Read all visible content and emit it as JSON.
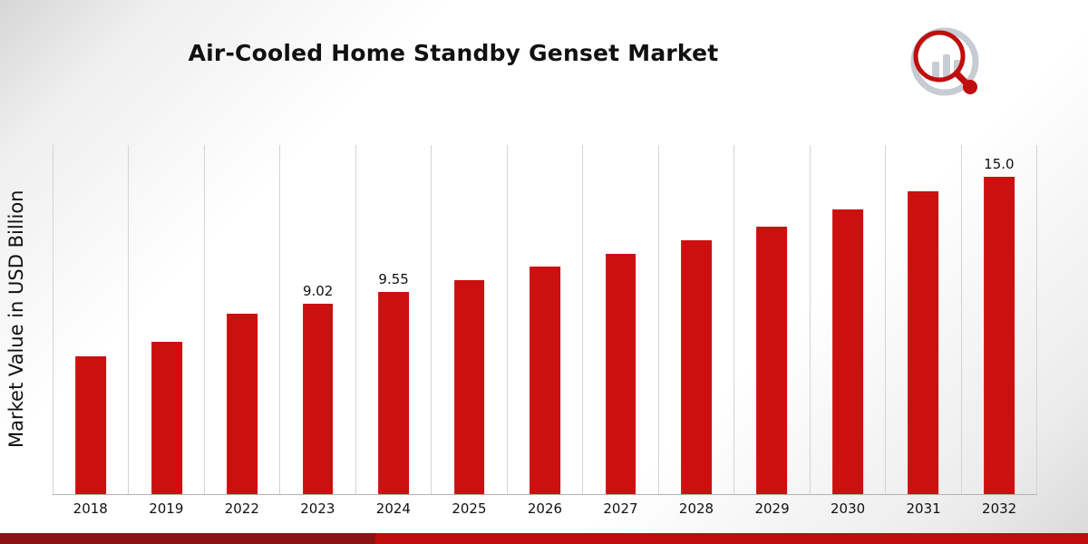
{
  "page": {
    "title": "Air-Cooled Home Standby Genset Market",
    "y_axis_label": "Market Value in USD Billion"
  },
  "chart_data": {
    "type": "bar",
    "title": "Air-Cooled Home Standby Genset Market",
    "xlabel": "",
    "ylabel": "Market Value in USD Billion",
    "categories": [
      "2018",
      "2019",
      "2022",
      "2023",
      "2024",
      "2025",
      "2026",
      "2027",
      "2028",
      "2029",
      "2030",
      "2031",
      "2032"
    ],
    "values": [
      6.5,
      7.2,
      8.55,
      9.02,
      9.55,
      10.1,
      10.75,
      11.35,
      12.0,
      12.65,
      13.45,
      14.3,
      15.0
    ],
    "data_labels": [
      "",
      "",
      "",
      "9.02",
      "9.55",
      "",
      "",
      "",
      "",
      "",
      "",
      "",
      "15.0"
    ],
    "ylim": [
      0,
      16.5
    ],
    "grid": "vertical-only",
    "legend": "none",
    "bar_color": "#cc1010"
  },
  "branding": {
    "logo_name": "market-research-logo",
    "logo_gray": "#c7ccd3",
    "logo_red": "#c00d0d"
  },
  "footer": {
    "accent_bright": "#c00c0c",
    "accent_dark": "#8a1414",
    "dark_width_percent": 34.5
  }
}
